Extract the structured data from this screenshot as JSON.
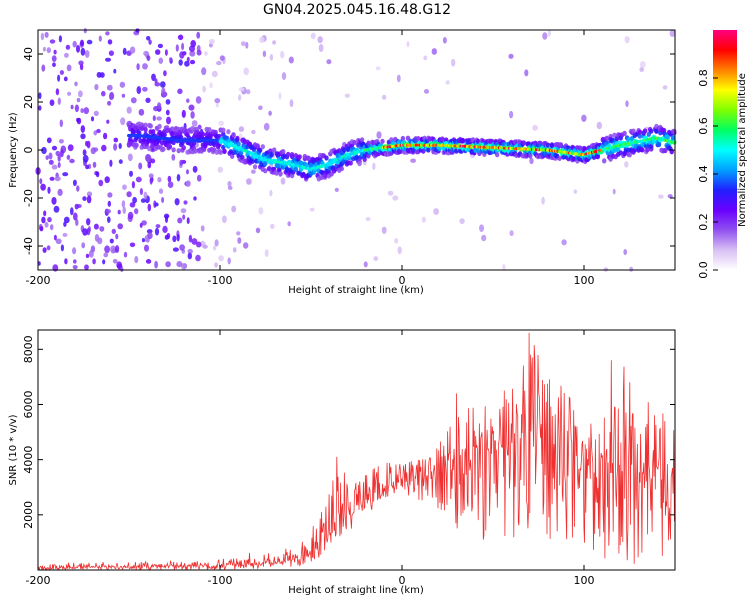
{
  "chart_data": [
    {
      "type": "heatmap",
      "title": "GN04.2025.045.16.48.G12",
      "xlabel": "Height of straight line (km)",
      "ylabel": "Frequency (Hz)",
      "xlim": [
        -200,
        150
      ],
      "ylim": [
        -50,
        50
      ],
      "x_ticks": [
        "-200",
        "-100",
        "0",
        "100"
      ],
      "x_tick_values": [
        -200,
        -100,
        0,
        100
      ],
      "y_ticks": [
        "40",
        "20",
        "0",
        "-20",
        "-40"
      ],
      "y_tick_values": [
        40,
        20,
        0,
        -20,
        -40
      ],
      "colorbar": {
        "label": "Normalized spectral amplitude",
        "range": [
          0,
          1
        ],
        "ticks": [
          "0.0",
          "0.2",
          "0.4",
          "0.6",
          "0.8"
        ],
        "tick_values": [
          0,
          0.2,
          0.4,
          0.6,
          0.8
        ],
        "colormap": [
          "#ffffff",
          "#d8c0f4",
          "#9050f0",
          "#6a00ff",
          "#2020ff",
          "#00a0ff",
          "#00ffff",
          "#00ff60",
          "#80ff00",
          "#ffff00",
          "#ff8000",
          "#ff0000",
          "#ff0080"
        ]
      },
      "ridge": {
        "description_points": [
          {
            "x": -145,
            "y": 6
          },
          {
            "x": -120,
            "y": 4
          },
          {
            "x": -100,
            "y": 4
          },
          {
            "x": -90,
            "y": 1
          },
          {
            "x": -75,
            "y": -4
          },
          {
            "x": -60,
            "y": -6
          },
          {
            "x": -50,
            "y": -8
          },
          {
            "x": -40,
            "y": -6
          },
          {
            "x": -30,
            "y": -2
          },
          {
            "x": -20,
            "y": 0
          },
          {
            "x": 0,
            "y": 2
          },
          {
            "x": 20,
            "y": 2
          },
          {
            "x": 50,
            "y": 1
          },
          {
            "x": 80,
            "y": 0
          },
          {
            "x": 100,
            "y": -2
          },
          {
            "x": 120,
            "y": 2
          },
          {
            "x": 140,
            "y": 5
          },
          {
            "x": 150,
            "y": 3
          }
        ],
        "peak_amplitude_region": [
          -10,
          110
        ]
      },
      "grid": false
    },
    {
      "type": "line",
      "title": "",
      "xlabel": "Height of straight line (km)",
      "ylabel": "SNR (10 * v/v)",
      "xlim": [
        -200,
        150
      ],
      "ylim": [
        0,
        8700
      ],
      "x_ticks": [
        "-200",
        "-100",
        "0",
        "100"
      ],
      "x_tick_values": [
        -200,
        -100,
        0,
        100
      ],
      "y_ticks": [
        "8000",
        "6000",
        "4000",
        "2000"
      ],
      "y_tick_values": [
        8000,
        6000,
        4000,
        2000
      ],
      "line_color": "#f03030",
      "envelope": {
        "x": [
          -200,
          -150,
          -100,
          -80,
          -70,
          -60,
          -50,
          -40,
          -35,
          -30,
          -20,
          -10,
          0,
          10,
          20,
          30,
          40,
          50,
          60,
          70,
          80,
          90,
          100,
          110,
          120,
          130,
          140,
          150
        ],
        "low": [
          0,
          0,
          0,
          50,
          100,
          100,
          200,
          500,
          1000,
          1200,
          2000,
          2500,
          2800,
          2500,
          2200,
          1500,
          1000,
          1000,
          1000,
          1200,
          1000,
          800,
          1000,
          300,
          300,
          200,
          100,
          500
        ],
        "high": [
          250,
          300,
          400,
          700,
          600,
          900,
          1400,
          3000,
          4000,
          3500,
          3500,
          4000,
          4200,
          4000,
          4500,
          6400,
          6200,
          6400,
          7000,
          8500,
          7200,
          6600,
          5200,
          5600,
          7600,
          6800,
          5800,
          5500
        ],
        "mean": [
          60,
          120,
          150,
          250,
          250,
          400,
          600,
          1300,
          2000,
          2200,
          2600,
          3000,
          3300,
          3400,
          3600,
          4200,
          4300,
          4300,
          4600,
          4800,
          4600,
          4300,
          4000,
          3700,
          3800,
          3600,
          3200,
          3500
        ]
      },
      "notable_peaks": [
        {
          "x": -36,
          "y": 4100
        },
        {
          "x": 30,
          "y": 6400
        },
        {
          "x": 70,
          "y": 8600
        },
        {
          "x": 115,
          "y": 7600
        }
      ],
      "grid": false
    }
  ]
}
